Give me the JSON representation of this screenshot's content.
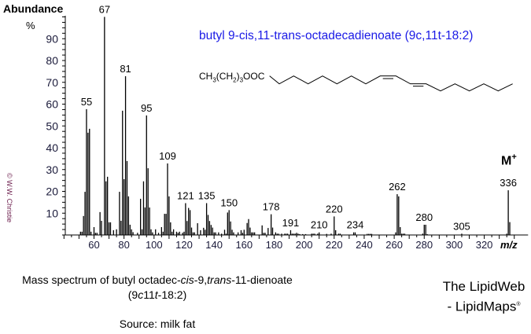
{
  "title": "butyl 9-cis,11-trans-octadecadienoate  (9c,11t-18:2)",
  "formula": {
    "a": "CH",
    "s1": "3",
    "b": "(CH",
    "s2": "2",
    "c": ")",
    "s3": "3",
    "d": "OOC"
  },
  "caption": {
    "pre": "Mass spectrum of butyl octadec-",
    "cis": "cis",
    "mid": "-9,",
    "trans": "trans",
    "post": "-11-dienoate",
    "line2_a": "(9",
    "line2_c": "c",
    "line2_b": "11",
    "line2_t": "t",
    "line2_e": "-18:2)"
  },
  "source": "Source: milk fat",
  "brand": {
    "line1": "The LipidWeb",
    "line2": "- LipidMaps",
    "reg": "®"
  },
  "copyright": "© W.W. Christie",
  "molecular_ion": {
    "label": "M",
    "sup": "+"
  },
  "chart_data": {
    "type": "bar",
    "ylabel": "Abundance",
    "yunit": "%",
    "xlabel": "m/z",
    "xlim": [
      40,
      345
    ],
    "ylim": [
      0,
      100
    ],
    "xticks": [
      60,
      80,
      100,
      120,
      140,
      160,
      180,
      200,
      220,
      240,
      260,
      280,
      300,
      320
    ],
    "yticks": [
      10,
      20,
      30,
      40,
      50,
      60,
      70,
      80,
      90
    ],
    "color": "#000000",
    "peaks": [
      [
        51,
        1.5
      ],
      [
        52,
        1.5
      ],
      [
        53,
        8.7
      ],
      [
        54,
        19.8
      ],
      [
        55,
        57.7
      ],
      [
        56,
        46.9
      ],
      [
        57,
        48.7
      ],
      [
        58,
        1.5
      ],
      [
        60,
        3.6
      ],
      [
        61,
        1
      ],
      [
        62,
        1
      ],
      [
        64,
        10.5
      ],
      [
        65,
        6.5
      ],
      [
        67,
        100
      ],
      [
        68,
        24.6
      ],
      [
        69,
        26.7
      ],
      [
        70,
        5.8
      ],
      [
        71,
        5.8
      ],
      [
        73,
        2.2
      ],
      [
        75,
        2.6
      ],
      [
        77,
        19.8
      ],
      [
        78,
        6.5
      ],
      [
        79,
        57
      ],
      [
        80,
        25.6
      ],
      [
        81,
        72.8
      ],
      [
        82,
        33.9
      ],
      [
        83,
        17.7
      ],
      [
        84,
        4.7
      ],
      [
        85,
        2.6
      ],
      [
        86,
        1.3
      ],
      [
        89,
        1
      ],
      [
        91,
        16.6
      ],
      [
        92,
        2.6
      ],
      [
        93,
        24.6
      ],
      [
        94,
        12.6
      ],
      [
        95,
        54.8
      ],
      [
        96,
        30.6
      ],
      [
        97,
        12.6
      ],
      [
        98,
        2.6
      ],
      [
        99,
        1.2
      ],
      [
        101,
        2.6
      ],
      [
        103,
        1
      ],
      [
        105,
        3.6
      ],
      [
        106,
        1.5
      ],
      [
        107,
        9.7
      ],
      [
        108,
        9.7
      ],
      [
        109,
        32.8
      ],
      [
        110,
        17.7
      ],
      [
        111,
        5.8
      ],
      [
        112,
        1.5
      ],
      [
        113,
        2.6
      ],
      [
        115,
        1.5
      ],
      [
        116,
        1
      ],
      [
        117,
        1.5
      ],
      [
        119,
        1
      ],
      [
        120,
        1.5
      ],
      [
        121,
        14.6
      ],
      [
        122,
        6.4
      ],
      [
        123,
        12.4
      ],
      [
        124,
        11.4
      ],
      [
        125,
        3.4
      ],
      [
        126,
        1.2
      ],
      [
        127,
        1.2
      ],
      [
        129,
        5.4
      ],
      [
        131,
        2.2
      ],
      [
        133,
        3.3
      ],
      [
        134,
        2.4
      ],
      [
        135,
        14.6
      ],
      [
        136,
        9.2
      ],
      [
        137,
        6.4
      ],
      [
        138,
        4.6
      ],
      [
        139,
        3.4
      ],
      [
        140,
        1.2
      ],
      [
        141,
        1.2
      ],
      [
        143,
        1.2
      ],
      [
        145,
        0.6
      ],
      [
        147,
        2.4
      ],
      [
        148,
        0.6
      ],
      [
        149,
        10.3
      ],
      [
        150,
        11.4
      ],
      [
        151,
        6.2
      ],
      [
        152,
        2.4
      ],
      [
        153,
        1.2
      ],
      [
        156,
        1.2
      ],
      [
        158,
        2.2
      ],
      [
        159,
        1
      ],
      [
        160,
        2.4
      ],
      [
        162,
        5.5
      ],
      [
        163,
        7.3
      ],
      [
        164,
        3.4
      ],
      [
        165,
        1.2
      ],
      [
        166,
        1.2
      ],
      [
        167,
        1.2
      ],
      [
        172,
        4.4
      ],
      [
        173,
        1
      ],
      [
        174,
        1
      ],
      [
        176,
        3.2
      ],
      [
        178,
        9.5
      ],
      [
        179,
        3.4
      ],
      [
        181,
        1.2
      ],
      [
        182,
        0.6
      ],
      [
        183,
        0.6
      ],
      [
        185,
        0.6
      ],
      [
        187,
        0.6
      ],
      [
        188,
        0.6
      ],
      [
        189,
        0.6
      ],
      [
        191,
        2.2
      ],
      [
        192,
        0.6
      ],
      [
        193,
        0.6
      ],
      [
        194,
        0.6
      ],
      [
        195,
        1
      ],
      [
        196,
        0.6
      ],
      [
        197,
        0.4
      ],
      [
        199,
        0.4
      ],
      [
        201,
        0.4
      ],
      [
        205,
        0.6
      ],
      [
        206,
        0.6
      ],
      [
        207,
        0.6
      ],
      [
        209,
        0.6
      ],
      [
        210,
        1.2
      ],
      [
        215,
        0.5
      ],
      [
        218,
        0.6
      ],
      [
        220,
        8.5
      ],
      [
        221,
        2.2
      ],
      [
        223,
        0.6
      ],
      [
        224,
        0.6
      ],
      [
        233,
        1.2
      ],
      [
        234,
        1.2
      ],
      [
        242,
        0.5
      ],
      [
        243,
        0.5
      ],
      [
        244,
        0.5
      ],
      [
        245,
        0.5
      ],
      [
        261,
        1.2
      ],
      [
        262,
        18.7
      ],
      [
        263,
        17.7
      ],
      [
        264,
        3.6
      ],
      [
        265,
        0.6
      ],
      [
        266,
        0.6
      ],
      [
        267,
        0.6
      ],
      [
        279,
        0.6
      ],
      [
        280,
        4.7
      ],
      [
        281,
        4.7
      ],
      [
        282,
        0.4
      ],
      [
        305,
        0.6
      ],
      [
        335,
        0.6
      ],
      [
        336,
        20.5
      ],
      [
        337,
        5.9
      ]
    ],
    "peak_labels": [
      55,
      67,
      81,
      95,
      109,
      121,
      135,
      150,
      178,
      191,
      210,
      220,
      234,
      262,
      280,
      305,
      336
    ]
  }
}
